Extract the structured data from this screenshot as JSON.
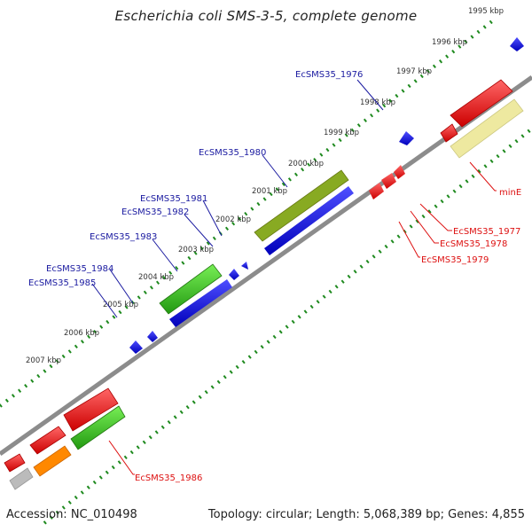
{
  "title": "Escherichia coli SMS-3-5, complete genome",
  "footer": {
    "accession": "Accession: NC_010498",
    "summary": "Topology: circular; Length: 5,068,389 bp; Genes: 4,855"
  },
  "colors": {
    "backbone": "#8c8c8c",
    "tick": "#1f8a1f",
    "forward_label": "#1a1aa0",
    "reverse_label": "#dd1111",
    "cds_red": "#ee1111",
    "cds_blue": "#1111dd",
    "cds_green": "#33bb22",
    "cds_olive": "#88aa22",
    "cds_pale": "#eee9a0",
    "cds_orange": "#ff8800",
    "cds_gray": "#bbbbbb"
  },
  "ruler": {
    "ticks": [
      "1995 kbp",
      "1996 kbp",
      "1997 kbp",
      "1998 kbp",
      "1999 kbp",
      "2000 kbp",
      "2001 kbp",
      "2002 kbp",
      "2003 kbp",
      "2004 kbp",
      "2005 kbp",
      "2006 kbp",
      "2007 kbp"
    ]
  },
  "gene_labels": {
    "forward": [
      "EcSMS35_1976",
      "EcSMS35_1980",
      "EcSMS35_1981",
      "EcSMS35_1982",
      "EcSMS35_1983",
      "EcSMS35_1984",
      "EcSMS35_1985"
    ],
    "reverse": [
      "minE",
      "EcSMS35_1977",
      "EcSMS35_1978",
      "EcSMS35_1979",
      "EcSMS35_1986"
    ]
  }
}
